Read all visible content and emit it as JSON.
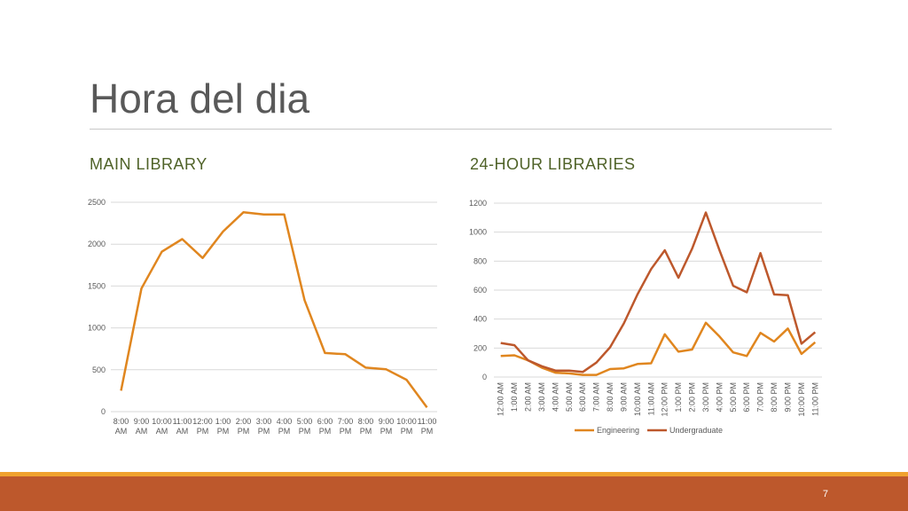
{
  "slide": {
    "title": "Hora del dia",
    "page_number": "7"
  },
  "left": {
    "heading": "MAIN LIBRARY"
  },
  "right": {
    "heading": "24-HOUR LIBRARIES"
  },
  "colors": {
    "main_line": "#e0861f",
    "engineering": "#e0861f",
    "undergraduate": "#bd582c",
    "footer": "#bd582c",
    "footer_accent": "#f0a22e"
  },
  "chart_data": [
    {
      "type": "line",
      "title": "",
      "categories": [
        "8:00 AM",
        "9:00 AM",
        "10:00 AM",
        "11:00 AM",
        "12:00 PM",
        "1:00 PM",
        "2:00 PM",
        "3:00 PM",
        "4:00 PM",
        "5:00 PM",
        "6:00 PM",
        "7:00 PM",
        "8:00 PM",
        "9:00 PM",
        "10:00 PM",
        "11:00 PM"
      ],
      "series": [
        {
          "values": [
            250,
            1470,
            1910,
            2060,
            1835,
            2150,
            2380,
            2355,
            2355,
            1330,
            700,
            685,
            525,
            505,
            380,
            50
          ]
        }
      ],
      "ylim": [
        0,
        2500
      ],
      "yticks": [
        0,
        500,
        1000,
        1500,
        2000,
        2500
      ],
      "grid": true
    },
    {
      "type": "line",
      "title": "",
      "categories": [
        "12:00 AM",
        "1:00 AM",
        "2:00 AM",
        "3:00 AM",
        "4:00 AM",
        "5:00 AM",
        "6:00 AM",
        "7:00 AM",
        "8:00 AM",
        "9:00 AM",
        "10:00 AM",
        "11:00 AM",
        "12:00 PM",
        "1:00 PM",
        "2:00 PM",
        "3:00 PM",
        "4:00 PM",
        "5:00 PM",
        "6:00 PM",
        "7:00 PM",
        "8:00 PM",
        "9:00 PM",
        "10:00 PM",
        "11:00 PM"
      ],
      "series": [
        {
          "name": "Engineering",
          "values": [
            145,
            150,
            115,
            65,
            30,
            25,
            15,
            15,
            55,
            60,
            90,
            95,
            295,
            175,
            190,
            375,
            280,
            170,
            145,
            305,
            245,
            335,
            160,
            240
          ]
        },
        {
          "name": "Undergraduate",
          "values": [
            235,
            220,
            115,
            75,
            45,
            45,
            35,
            100,
            205,
            370,
            570,
            745,
            875,
            685,
            885,
            1135,
            875,
            630,
            585,
            855,
            570,
            565,
            230,
            310
          ]
        }
      ],
      "ylim": [
        0,
        1200
      ],
      "yticks": [
        0,
        200,
        400,
        600,
        800,
        1000,
        1200
      ],
      "grid": true,
      "legend": "bottom"
    }
  ]
}
